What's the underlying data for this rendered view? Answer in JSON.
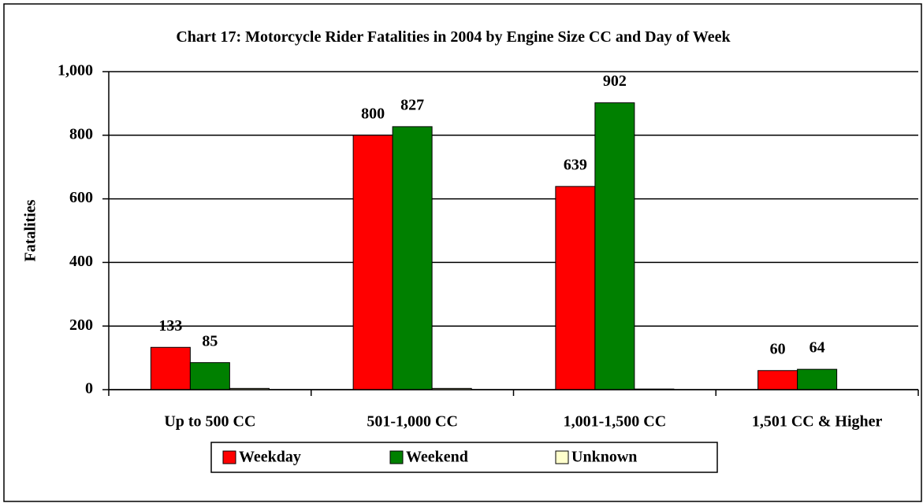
{
  "chart_data": {
    "type": "bar",
    "title": "Chart 17: Motorcycle Rider Fatalities in 2004 by Engine Size CC and Day of Week",
    "y_label": "Fatalities",
    "categories": [
      "Up to 500 CC",
      "501-1,000 CC",
      "1,001-1,500 CC",
      "1,501 CC & Higher"
    ],
    "series": [
      {
        "name": "Weekday",
        "color": "#ff0000",
        "values": [
          133,
          800,
          639,
          60
        ],
        "show_labels": true
      },
      {
        "name": "Weekend",
        "color": "#008000",
        "values": [
          85,
          827,
          902,
          64
        ],
        "show_labels": true
      },
      {
        "name": "Unknown",
        "color": "#ffffcc",
        "values": [
          4,
          4,
          2,
          0
        ],
        "show_labels": false
      }
    ],
    "ylim": [
      0,
      1000
    ],
    "yticks": [
      0,
      200,
      400,
      600,
      800,
      {
        "value": 1000,
        "label": "1,000"
      }
    ],
    "grid": true,
    "legend": "bottom"
  }
}
